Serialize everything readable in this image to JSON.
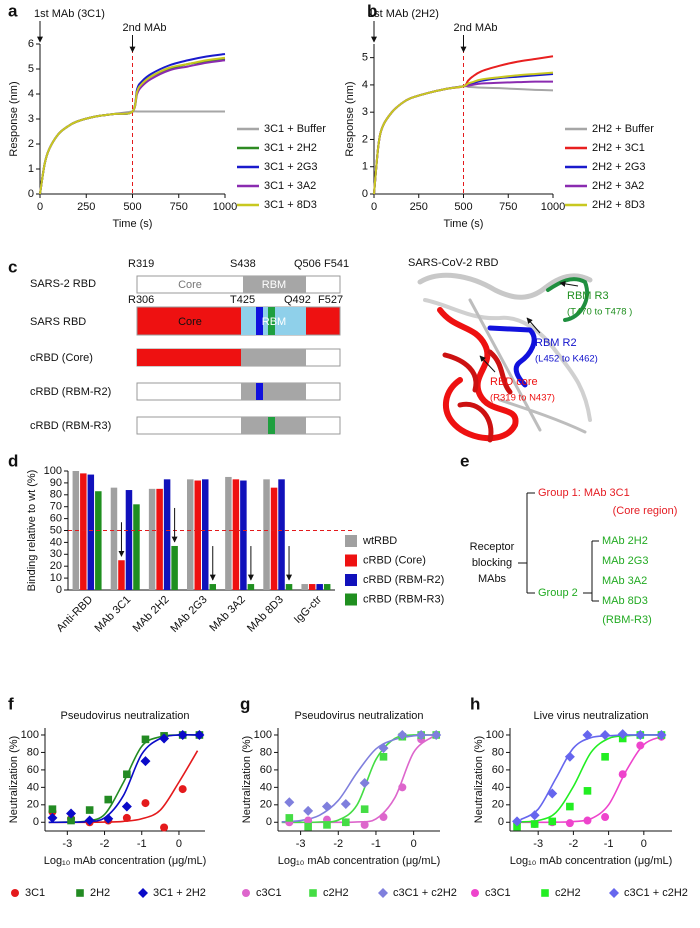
{
  "chart_data": [
    {
      "panel": "a",
      "type": "line",
      "annotations": [
        "1st MAb (3C1)",
        "2nd MAb"
      ],
      "xlabel": "Time (s)",
      "ylabel": "Response (nm)",
      "x": [
        0,
        25,
        50,
        100,
        150,
        200,
        300,
        400,
        500,
        525,
        550,
        600,
        700,
        800,
        900,
        1000
      ],
      "xlim": [
        0,
        1000
      ],
      "xticks": [
        0,
        250,
        500,
        750,
        1000
      ],
      "ylim": [
        0,
        6
      ],
      "yticks": [
        0,
        1,
        2,
        3,
        4,
        5,
        6
      ],
      "vline": 500,
      "series": [
        {
          "name": "3C1 + Buffer",
          "color": "#a6a6a6",
          "values": [
            0,
            1.2,
            1.8,
            2.4,
            2.7,
            2.9,
            3.1,
            3.2,
            3.3,
            3.3,
            3.3,
            3.3,
            3.3,
            3.3,
            3.3,
            3.3
          ]
        },
        {
          "name": "3C1 + 2H2",
          "color": "#2e8b22",
          "values": [
            0,
            1.2,
            1.8,
            2.4,
            2.7,
            2.9,
            3.1,
            3.2,
            3.3,
            4.1,
            4.4,
            4.7,
            5.0,
            5.2,
            5.3,
            5.4
          ]
        },
        {
          "name": "3C1 + 2G3",
          "color": "#1a1acc",
          "values": [
            0,
            1.2,
            1.8,
            2.4,
            2.7,
            2.9,
            3.1,
            3.2,
            3.3,
            4.2,
            4.5,
            4.8,
            5.15,
            5.35,
            5.5,
            5.6
          ]
        },
        {
          "name": "3C1 + 3A2",
          "color": "#8a2bb0",
          "values": [
            0,
            1.2,
            1.8,
            2.4,
            2.7,
            2.9,
            3.1,
            3.2,
            3.3,
            4.0,
            4.3,
            4.6,
            4.95,
            5.1,
            5.25,
            5.35
          ]
        },
        {
          "name": "3C1 + 8D3",
          "color": "#c8c820",
          "values": [
            0,
            1.2,
            1.8,
            2.4,
            2.7,
            2.9,
            3.1,
            3.2,
            3.3,
            4.1,
            4.4,
            4.7,
            5.05,
            5.2,
            5.35,
            5.45
          ]
        }
      ]
    },
    {
      "panel": "b",
      "type": "line",
      "annotations": [
        "1st MAb (2H2)",
        "2nd MAb"
      ],
      "xlabel": "Time (s)",
      "ylabel": "Response (nm)",
      "x": [
        0,
        25,
        50,
        100,
        150,
        200,
        300,
        400,
        500,
        525,
        550,
        600,
        700,
        800,
        900,
        1000
      ],
      "xlim": [
        0,
        1000
      ],
      "xticks": [
        0,
        250,
        500,
        750,
        1000
      ],
      "ylim": [
        0,
        5.5
      ],
      "yticks": [
        0,
        1,
        2,
        3,
        4,
        5
      ],
      "vline": 500,
      "series": [
        {
          "name": "2H2 + Buffer",
          "color": "#a6a6a6",
          "values": [
            0,
            1.8,
            2.5,
            3.0,
            3.3,
            3.5,
            3.7,
            3.85,
            3.95,
            3.93,
            3.92,
            3.9,
            3.88,
            3.85,
            3.82,
            3.8
          ]
        },
        {
          "name": "2H2 + 3C1",
          "color": "#e82020",
          "values": [
            0,
            1.8,
            2.5,
            3.0,
            3.3,
            3.5,
            3.7,
            3.85,
            3.95,
            4.15,
            4.3,
            4.5,
            4.7,
            4.85,
            4.95,
            5.05
          ]
        },
        {
          "name": "2H2 + 2G3",
          "color": "#1a1acc",
          "values": [
            0,
            1.8,
            2.5,
            3.0,
            3.3,
            3.5,
            3.7,
            3.85,
            3.95,
            4.0,
            4.05,
            4.15,
            4.25,
            4.3,
            4.35,
            4.4
          ]
        },
        {
          "name": "2H2 + 3A2",
          "color": "#8a2bb0",
          "values": [
            0,
            1.8,
            2.5,
            3.0,
            3.3,
            3.5,
            3.7,
            3.85,
            3.95,
            3.97,
            4.0,
            4.05,
            4.08,
            4.1,
            4.12,
            4.12
          ]
        },
        {
          "name": "2H2 + 8D3",
          "color": "#c8c820",
          "values": [
            0,
            1.8,
            2.5,
            3.0,
            3.3,
            3.5,
            3.7,
            3.85,
            3.95,
            4.05,
            4.1,
            4.2,
            4.28,
            4.35,
            4.4,
            4.45
          ]
        }
      ]
    },
    {
      "panel": "d",
      "type": "bar",
      "ylabel": "Binding relative to wt (%)",
      "categories": [
        "Anti-RBD",
        "MAb 3C1",
        "MAb 2H2",
        "MAb 2G3",
        "MAb 3A2",
        "MAb 8D3",
        "IgG-ctr"
      ],
      "ylim": [
        0,
        100
      ],
      "yticks": [
        0,
        10,
        20,
        30,
        40,
        50,
        60,
        70,
        80,
        90,
        100
      ],
      "hline": 50,
      "series": [
        {
          "name": "wtRBD",
          "color": "#a0a0a0",
          "values": [
            100,
            86,
            85,
            93,
            95,
            93,
            5
          ]
        },
        {
          "name": "cRBD (Core)",
          "color": "#ee1111",
          "values": [
            98,
            25,
            85,
            92,
            93,
            86,
            5
          ]
        },
        {
          "name": "cRBD (RBM-R2)",
          "color": "#1111bb",
          "values": [
            97,
            84,
            93,
            93,
            92,
            93,
            5
          ]
        },
        {
          "name": "cRBD (RBM-R3)",
          "color": "#1f8f1f",
          "values": [
            83,
            72,
            37,
            5,
            5,
            5,
            5
          ]
        }
      ]
    },
    {
      "panel": "f",
      "type": "scatter",
      "title": "Pseudovirus neutralization",
      "xlabel": "Log₁₀ mAb concentration (μg/mL)",
      "ylabel": "Neutralization (%)",
      "x": [
        -3.4,
        -2.9,
        -2.4,
        -1.9,
        -1.4,
        -0.9,
        -0.4,
        0.1,
        0.55
      ],
      "xlim": [
        -3.6,
        0.7
      ],
      "xticks": [
        -3,
        -2,
        -1,
        0
      ],
      "ylim": [
        -10,
        108
      ],
      "yticks": [
        0,
        20,
        40,
        60,
        80,
        100
      ],
      "fit_x": [
        -3.5,
        -3,
        -2.5,
        -2,
        -1.5,
        -1,
        -0.5,
        0,
        0.5
      ],
      "series": [
        {
          "name": "3C1",
          "color": "#e41a1c",
          "marker": "circle",
          "values": [
            12,
            4,
            0,
            2,
            5,
            22,
            -6,
            38,
            100
          ],
          "fit": [
            0,
            0,
            0,
            0.2,
            1,
            4,
            14,
            46,
            82
          ]
        },
        {
          "name": "2H2",
          "color": "#238b23",
          "marker": "square",
          "values": [
            15,
            2,
            14,
            26,
            55,
            95,
            99,
            100,
            100
          ],
          "fit": [
            0,
            0.2,
            1.3,
            9,
            45,
            87,
            98,
            100,
            100
          ]
        },
        {
          "name": "3C1 + 2H2",
          "color": "#0a0ac8",
          "marker": "diamond",
          "values": [
            5,
            10,
            2,
            4,
            18,
            70,
            96,
            100,
            100
          ],
          "fit": [
            0,
            0.1,
            0.7,
            5,
            30,
            78,
            96,
            100,
            100
          ]
        }
      ]
    },
    {
      "panel": "g",
      "type": "scatter",
      "title": "Pseudovirus neutralization",
      "xlabel": "Log₁₀ mAb concentration (μg/mL)",
      "ylabel": "Neutralization (%)",
      "x": [
        -3.3,
        -2.8,
        -2.3,
        -1.8,
        -1.3,
        -0.8,
        -0.3,
        0.2,
        0.6
      ],
      "xlim": [
        -3.6,
        0.7
      ],
      "xticks": [
        -3,
        -2,
        -1,
        0
      ],
      "ylim": [
        -10,
        108
      ],
      "yticks": [
        0,
        20,
        40,
        60,
        80,
        100
      ],
      "fit_x": [
        -3.5,
        -3,
        -2.5,
        -2,
        -1.5,
        -1,
        -0.5,
        0,
        0.5
      ],
      "series": [
        {
          "name": "c3C1",
          "color": "#dd66cc",
          "marker": "circle",
          "values": [
            0,
            2,
            3,
            0,
            -3,
            6,
            40,
            95,
            100
          ],
          "fit": [
            0,
            0,
            0,
            0,
            0.4,
            3.8,
            28,
            80,
            98
          ]
        },
        {
          "name": "c2H2",
          "color": "#44dd44",
          "marker": "square",
          "values": [
            5,
            -5,
            -3,
            0,
            15,
            75,
            98,
            100,
            100
          ],
          "fit": [
            0,
            0,
            0.3,
            2.5,
            20,
            72,
            96,
            100,
            100
          ]
        },
        {
          "name": "c3C1 + c2H2",
          "color": "#7f7fdd",
          "marker": "diamond",
          "values": [
            23,
            13,
            18,
            21,
            45,
            85,
            100,
            100,
            100
          ],
          "fit": [
            0.5,
            2,
            8,
            25,
            57,
            84,
            95,
            99,
            100
          ]
        }
      ]
    },
    {
      "panel": "h",
      "type": "scatter",
      "title": "Live virus neutralization",
      "xlabel": "Log₁₀ mAb concentration (μg/mL)",
      "ylabel": "Neutralization (%)",
      "x": [
        -3.6,
        -3.1,
        -2.6,
        -2.1,
        -1.6,
        -1.1,
        -0.6,
        -0.1,
        0.5
      ],
      "xlim": [
        -3.8,
        0.8
      ],
      "xticks": [
        -3,
        -2,
        -1,
        0
      ],
      "ylim": [
        -10,
        108
      ],
      "yticks": [
        0,
        20,
        40,
        60,
        80,
        100
      ],
      "fit_x": [
        -3.5,
        -3,
        -2.5,
        -2,
        -1.5,
        -1,
        -0.5,
        0,
        0.5
      ],
      "series": [
        {
          "name": "c3C1",
          "color": "#ee44cc",
          "marker": "circle",
          "values": [
            0,
            -2,
            0,
            -1,
            2,
            6,
            55,
            88,
            98
          ],
          "fit": [
            0,
            0,
            0.1,
            0.8,
            4,
            20,
            59,
            89,
            98
          ]
        },
        {
          "name": "c2H2",
          "color": "#22ee22",
          "marker": "square",
          "values": [
            -5,
            -2,
            1,
            18,
            36,
            75,
            96,
            100,
            100
          ],
          "fit": [
            0.4,
            2,
            11,
            41,
            80,
            96,
            99,
            100,
            100
          ]
        },
        {
          "name": "c3C1 + c2H2",
          "color": "#6666ee",
          "marker": "diamond",
          "values": [
            1,
            8,
            33,
            75,
            100,
            100,
            101,
            100,
            100
          ],
          "fit": [
            3,
            15,
            50,
            85,
            97,
            99,
            100,
            100,
            100
          ]
        }
      ]
    }
  ],
  "diagram_c": {
    "panel": "c",
    "rows": [
      "SARS-2 RBD",
      "SARS RBD",
      "cRBD (Core)",
      "cRBD (RBM-R2)",
      "cRBD (RBM-R3)"
    ],
    "residues_sars2": [
      "R319",
      "S438",
      "Q506",
      "F541"
    ],
    "residues_sars": [
      "R306",
      "T425",
      "Q492",
      "F527"
    ],
    "segments": [
      "Core",
      "RBM",
      "Core",
      "RBM"
    ],
    "structure": {
      "title": "SARS-CoV-2 RBD",
      "labels": [
        {
          "text": "RBM R3",
          "range": "(T470 to T478 )"
        },
        {
          "text": "RBM R2",
          "range": "(L452 to K462)"
        },
        {
          "text": "RBD core",
          "range": "(R319 to N437)"
        }
      ]
    }
  },
  "diagram_e": {
    "panel": "e",
    "root": [
      "Receptor",
      "blocking",
      "MAbs"
    ],
    "group1": [
      "Group 1: MAb 3C1",
      "(Core region)"
    ],
    "group2": "Group 2",
    "group2_members": [
      "MAb 2H2",
      "MAb 2G3",
      "MAb 3A2",
      "MAb 8D3",
      "(RBM-R3)"
    ]
  }
}
